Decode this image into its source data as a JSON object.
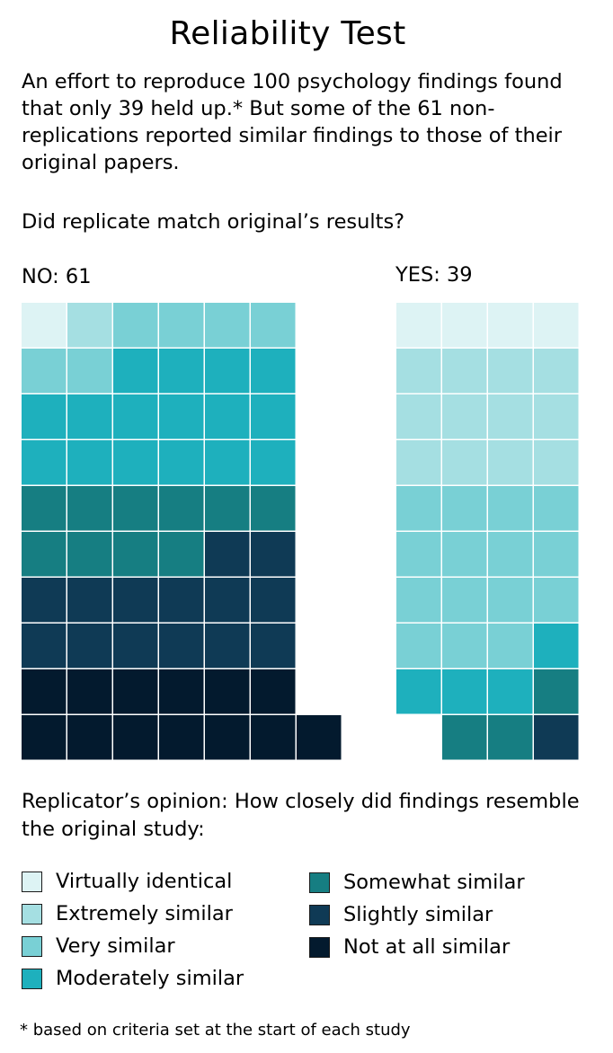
{
  "title": "Reliability Test",
  "subtitle": "An effort to reproduce 100 psychology findings found that only 39 held up.* But some of the 61 non-replications reported similar findings to those of their original papers.",
  "question": "Did replicate match original’s results?",
  "legend_heading": "Replicator’s opinion: How closely did findings resemble the original study:",
  "footnote": "* based on criteria set at the start of each study",
  "chart_data": {
    "type": "waffle",
    "unit": "one square = one study",
    "categories": [
      {
        "key": "virtually",
        "label": "Virtually identical",
        "color": "#ddf3f4"
      },
      {
        "key": "extremely",
        "label": "Extremely similar",
        "color": "#a5dfe2"
      },
      {
        "key": "very",
        "label": "Very similar",
        "color": "#79d0d5"
      },
      {
        "key": "moderately",
        "label": "Moderately similar",
        "color": "#1eb0bd"
      },
      {
        "key": "somewhat",
        "label": "Somewhat similar",
        "color": "#167e82"
      },
      {
        "key": "slightly",
        "label": "Slightly similar",
        "color": "#0f3a55"
      },
      {
        "key": "notatall",
        "label": "Not at all similar",
        "color": "#031a2e"
      }
    ],
    "groups": [
      {
        "label": "NO: 61",
        "total": 61,
        "counts": {
          "virtually": 1,
          "extremely": 1,
          "very": 6,
          "moderately": 16,
          "somewhat": 10,
          "slightly": 14,
          "notatall": 13
        }
      },
      {
        "label": "YES: 39",
        "total": 39,
        "counts": {
          "virtually": 4,
          "extremely": 12,
          "very": 15,
          "moderately": 4,
          "somewhat": 3,
          "slightly": 1,
          "notatall": 0
        }
      }
    ]
  }
}
